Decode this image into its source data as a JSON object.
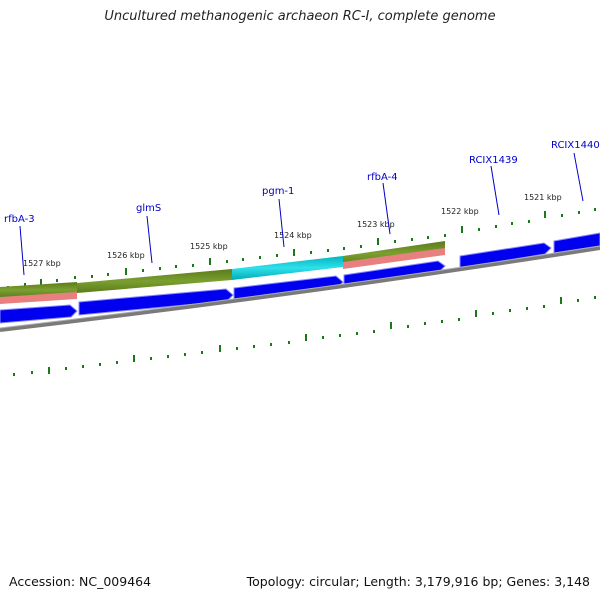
{
  "title": "Uncultured methanogenic archaeon RC-I, complete genome",
  "footer": {
    "accession": "Accession: NC_009464",
    "summary": "Topology: circular; Length: 3,179,916 bp; Genes: 3,148"
  },
  "kbp_labels": [
    "1527 kbp",
    "1526 kbp",
    "1525 kbp",
    "1524 kbp",
    "1523 kbp",
    "1522 kbp",
    "1521 kbp"
  ],
  "gene_labels": [
    "rfbA-3",
    "glmS",
    "pgm-1",
    "rfbA-4",
    "RCIX1439",
    "RCIX1440"
  ],
  "colors": {
    "cds": "#0000ee",
    "cog_olive": "#6b8e23",
    "cog_cyan": "#00c8d2",
    "rna_pink": "#e88080",
    "backbone": "#808080",
    "tick": "#1a7a1a",
    "label": "#0000cc"
  }
}
